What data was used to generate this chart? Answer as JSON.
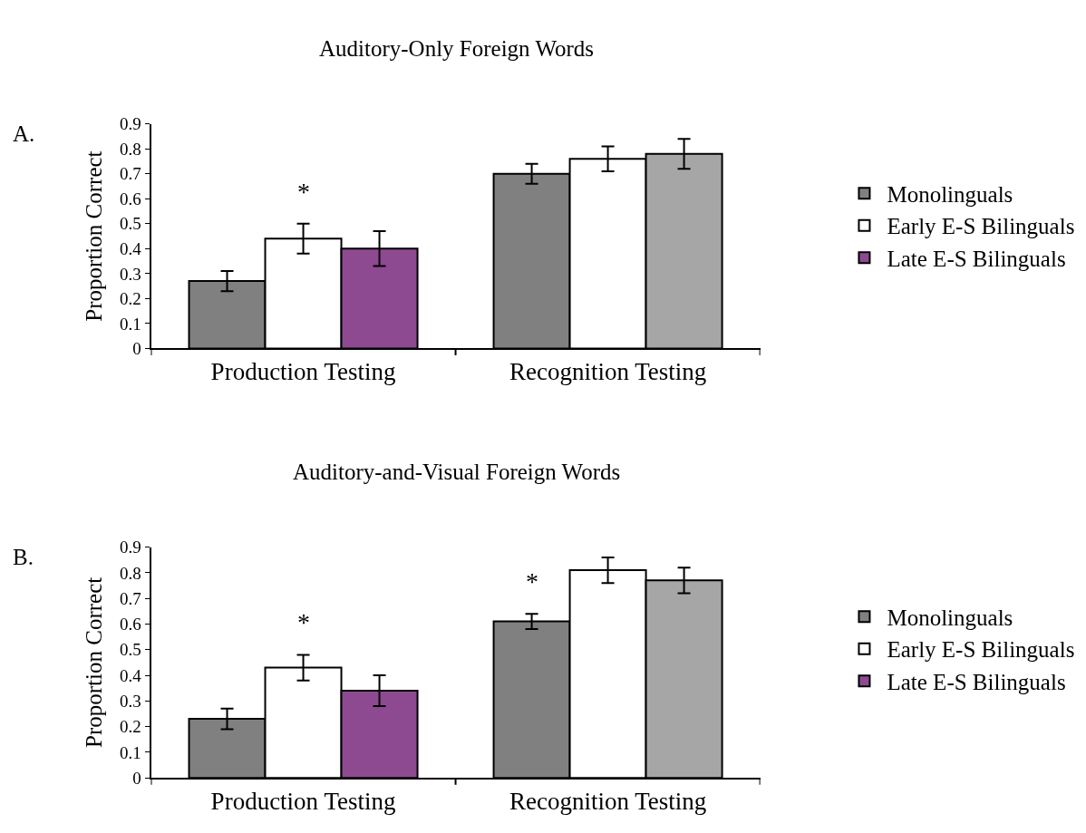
{
  "chart_data": [
    {
      "type": "bar",
      "title": "Auditory-Only Foreign Words",
      "ylabel": "Proportion Correct",
      "categories": [
        "Production Testing",
        "Recognition Testing"
      ],
      "series": [
        {
          "name": "Monolinguals",
          "colors": [
            "#808080",
            "#808080"
          ],
          "values": [
            0.27,
            0.7
          ],
          "errors": [
            0.04,
            0.04
          ]
        },
        {
          "name": "Early E-S Bilinguals",
          "colors": [
            "#ffffff",
            "#ffffff"
          ],
          "values": [
            0.44,
            0.76
          ],
          "errors": [
            0.06,
            0.05
          ]
        },
        {
          "name": "Late E-S Bilinguals",
          "colors": [
            "#8e4a91",
            "#a6a6a6"
          ],
          "values": [
            0.4,
            0.78
          ],
          "errors": [
            0.07,
            0.06
          ]
        }
      ],
      "ylim": [
        0,
        0.9
      ],
      "yticks": [
        0,
        0.1,
        0.2,
        0.3,
        0.4,
        0.5,
        0.6,
        0.7,
        0.8,
        0.9
      ],
      "legend": "right",
      "annotations": [
        "A.",
        {
          "text": "*",
          "y": 0.44
        }
      ]
    },
    {
      "type": "bar",
      "title": "Auditory-and-Visual Foreign Words",
      "ylabel": "Proportion Correct",
      "categories": [
        "Production Testing",
        "Recognition Testing"
      ],
      "series": [
        {
          "name": "Monolinguals",
          "colors": [
            "#808080",
            "#808080"
          ],
          "values": [
            0.23,
            0.61
          ],
          "errors": [
            0.04,
            0.03
          ]
        },
        {
          "name": "Early E-S Bilinguals",
          "colors": [
            "#ffffff",
            "#ffffff"
          ],
          "values": [
            0.43,
            0.81
          ],
          "errors": [
            0.05,
            0.05
          ]
        },
        {
          "name": "Late E-S Bilinguals",
          "colors": [
            "#8e4a91",
            "#a6a6a6"
          ],
          "values": [
            0.34,
            0.77
          ],
          "errors": [
            0.06,
            0.05
          ]
        }
      ],
      "ylim": [
        0,
        0.9
      ],
      "yticks": [
        0,
        0.1,
        0.2,
        0.3,
        0.4,
        0.5,
        0.6,
        0.7,
        0.8,
        0.9
      ],
      "legend": "right",
      "annotations": [
        "B.",
        {
          "text": "*",
          "y": 0.43
        },
        {
          "text": "*",
          "y": 0.61
        }
      ]
    }
  ]
}
